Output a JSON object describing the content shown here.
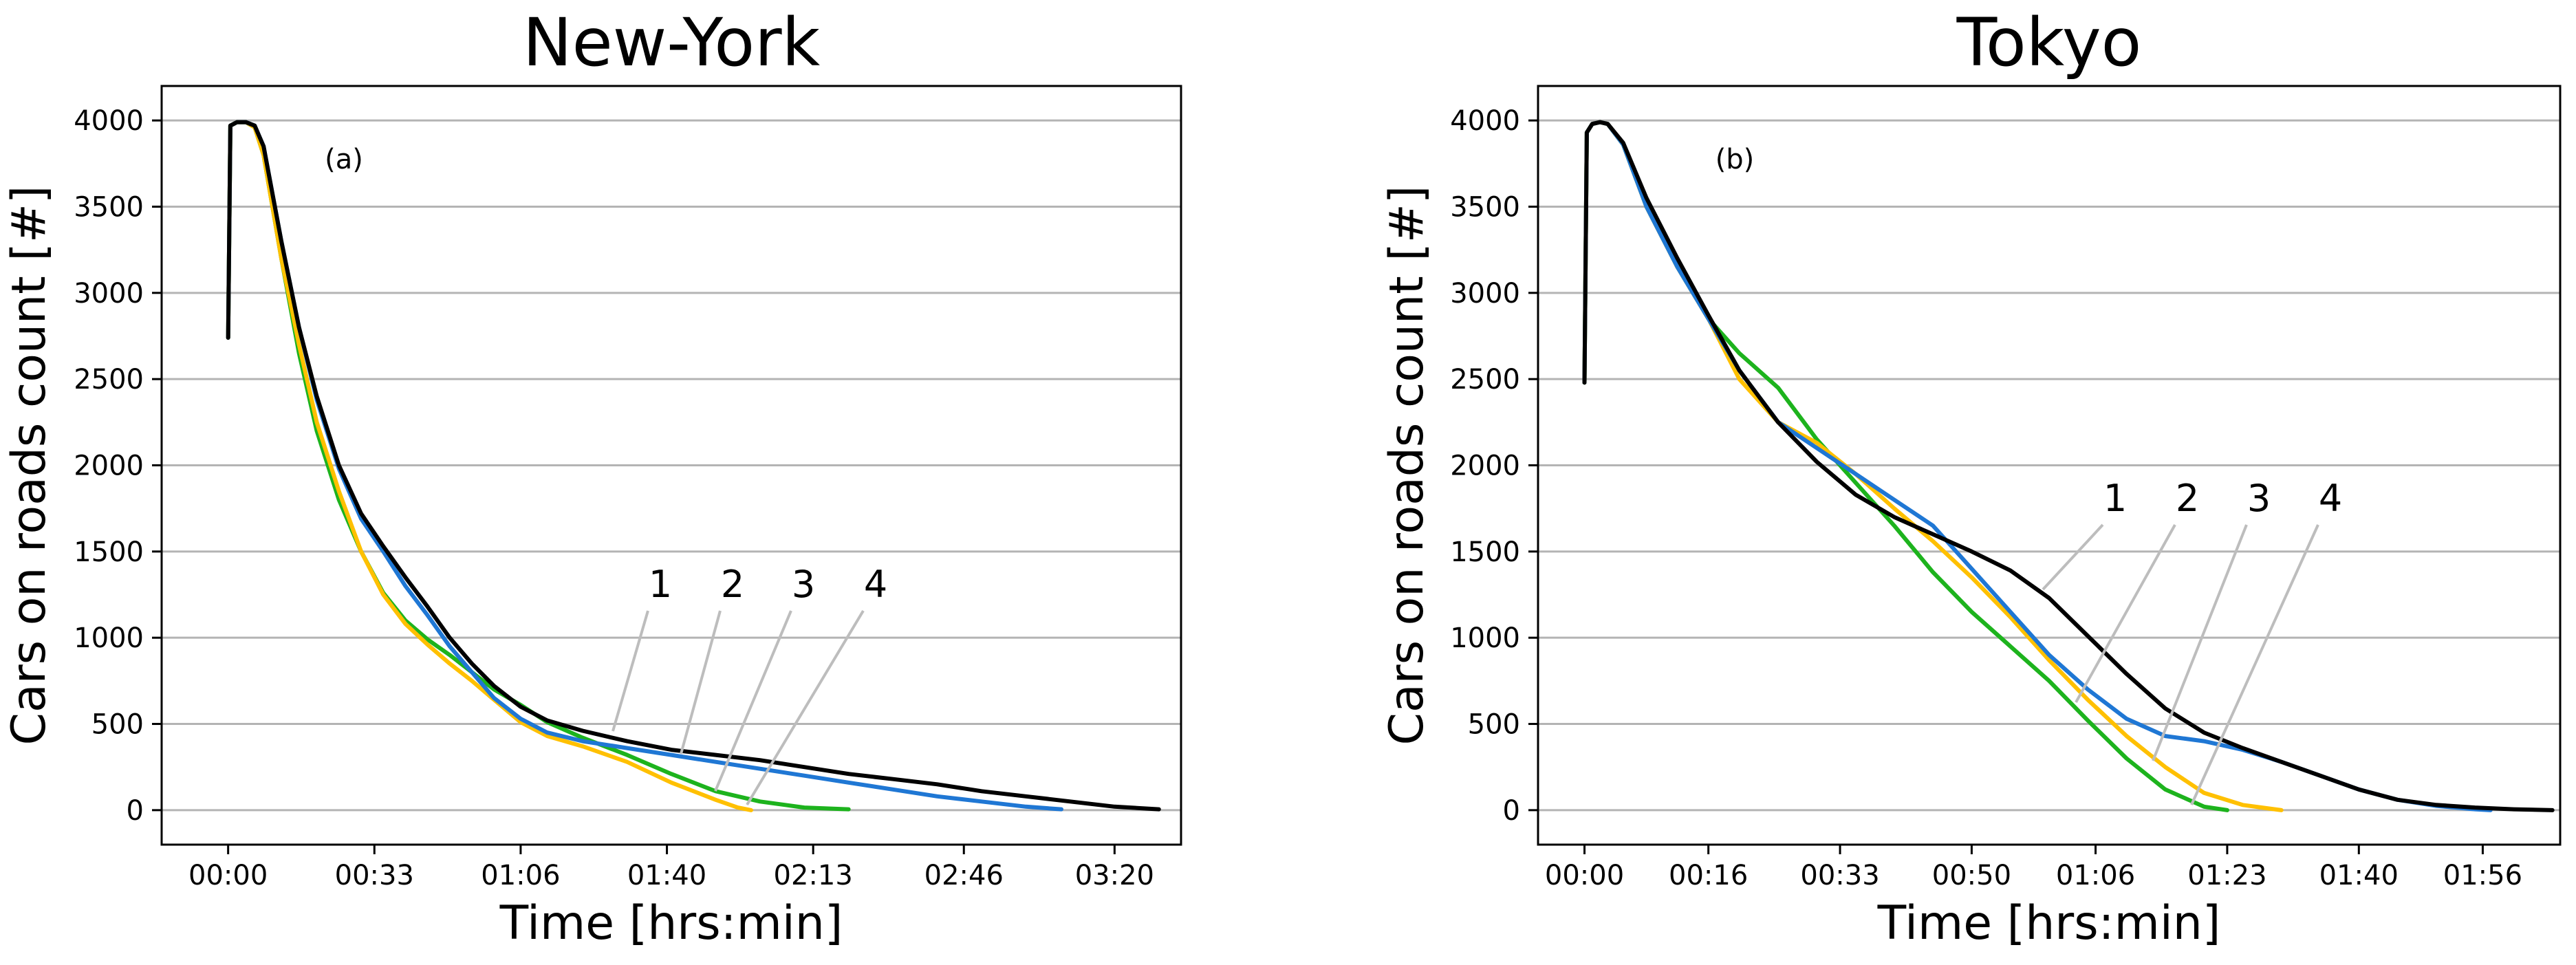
{
  "colors": {
    "series_1": "#000000",
    "series_2": "#1f77d4",
    "series_3": "#ffc000",
    "series_4": "#1db31d",
    "leader": "#bdbdbd",
    "grid": "#b4b4b4"
  },
  "chart_data": [
    {
      "type": "line",
      "title": "New-York",
      "panel_label": "(a)",
      "xlabel": "Time [hrs:min]",
      "ylabel": "Cars on roads count [#]",
      "x_unit": "minutes",
      "xlim": [
        -15,
        215
      ],
      "ylim": [
        -200,
        4200
      ],
      "x_ticks": [
        0,
        33,
        66,
        99,
        132,
        166,
        200
      ],
      "x_tick_labels": [
        "00:00",
        "00:33",
        "01:06",
        "01:40",
        "02:13",
        "02:46",
        "03:20"
      ],
      "y_ticks": [
        0,
        500,
        1000,
        1500,
        2000,
        2500,
        3000,
        3500,
        4000
      ],
      "y_tick_labels": [
        "0",
        "500",
        "1000",
        "1500",
        "2000",
        "2500",
        "3000",
        "3500",
        "4000"
      ],
      "grid": "horizontal",
      "callouts": [
        "1",
        "2",
        "3",
        "4"
      ],
      "series": [
        {
          "label": "1",
          "x": [
            0,
            0.5,
            2,
            4,
            6,
            8,
            12,
            16,
            20,
            25,
            30,
            35,
            40,
            45,
            50,
            55,
            60,
            66,
            72,
            80,
            90,
            100,
            110,
            120,
            130,
            140,
            150,
            160,
            170,
            180,
            190,
            200,
            210
          ],
          "y": [
            2740,
            3970,
            3990,
            3990,
            3970,
            3850,
            3300,
            2800,
            2400,
            2000,
            1720,
            1530,
            1350,
            1180,
            1000,
            850,
            720,
            600,
            520,
            460,
            400,
            350,
            320,
            290,
            250,
            210,
            180,
            150,
            110,
            80,
            50,
            20,
            5
          ]
        },
        {
          "label": "2",
          "x": [
            0,
            0.5,
            2,
            4,
            6,
            8,
            12,
            16,
            20,
            25,
            30,
            35,
            40,
            45,
            50,
            55,
            60,
            66,
            72,
            80,
            90,
            100,
            110,
            120,
            130,
            140,
            150,
            160,
            170,
            180,
            188
          ],
          "y": [
            2740,
            3970,
            3990,
            3990,
            3970,
            3850,
            3300,
            2800,
            2380,
            1980,
            1690,
            1500,
            1300,
            1130,
            950,
            800,
            650,
            530,
            450,
            400,
            360,
            320,
            280,
            240,
            200,
            160,
            120,
            80,
            50,
            20,
            5
          ]
        },
        {
          "label": "3",
          "x": [
            0,
            0.5,
            2,
            4,
            6,
            8,
            12,
            16,
            20,
            25,
            30,
            35,
            40,
            45,
            50,
            55,
            60,
            66,
            72,
            80,
            90,
            100,
            110,
            115,
            118
          ],
          "y": [
            2740,
            3970,
            3990,
            3990,
            3960,
            3800,
            3200,
            2700,
            2250,
            1850,
            1500,
            1250,
            1080,
            960,
            850,
            750,
            640,
            510,
            430,
            370,
            280,
            160,
            60,
            15,
            0
          ]
        },
        {
          "label": "4",
          "x": [
            0,
            0.5,
            2,
            4,
            6,
            8,
            12,
            16,
            20,
            25,
            30,
            35,
            40,
            45,
            50,
            55,
            60,
            66,
            72,
            80,
            90,
            100,
            110,
            120,
            130,
            140
          ],
          "y": [
            2740,
            3970,
            3990,
            3990,
            3960,
            3800,
            3200,
            2650,
            2200,
            1800,
            1500,
            1260,
            1100,
            990,
            900,
            800,
            700,
            610,
            510,
            420,
            320,
            210,
            110,
            50,
            15,
            5
          ]
        }
      ]
    },
    {
      "type": "line",
      "title": "Tokyo",
      "panel_label": "(b)",
      "xlabel": "Time [hrs:min]",
      "ylabel": "Cars on roads count [#]",
      "x_unit": "minutes",
      "xlim": [
        -6,
        126
      ],
      "ylim": [
        -200,
        4200
      ],
      "x_ticks": [
        0,
        16,
        33,
        50,
        66,
        83,
        100,
        116
      ],
      "x_tick_labels": [
        "00:00",
        "00:16",
        "00:33",
        "00:50",
        "01:06",
        "01:23",
        "01:40",
        "01:56"
      ],
      "y_ticks": [
        0,
        500,
        1000,
        1500,
        2000,
        2500,
        3000,
        3500,
        4000
      ],
      "y_tick_labels": [
        "0",
        "500",
        "1000",
        "1500",
        "2000",
        "2500",
        "3000",
        "3500",
        "4000"
      ],
      "grid": "horizontal",
      "callouts": [
        "1",
        "2",
        "3",
        "4"
      ],
      "series": [
        {
          "label": "1",
          "x": [
            0,
            0.3,
            1,
            2,
            3,
            5,
            8,
            12,
            16,
            20,
            25,
            30,
            35,
            40,
            45,
            50,
            55,
            60,
            65,
            70,
            75,
            80,
            85,
            90,
            95,
            100,
            105,
            110,
            115,
            120,
            125
          ],
          "y": [
            2480,
            3930,
            3980,
            3990,
            3980,
            3870,
            3550,
            3200,
            2870,
            2550,
            2250,
            2020,
            1830,
            1700,
            1600,
            1500,
            1390,
            1230,
            1010,
            790,
            590,
            450,
            360,
            280,
            200,
            120,
            60,
            30,
            15,
            5,
            0
          ]
        },
        {
          "label": "2",
          "x": [
            0,
            0.3,
            1,
            2,
            3,
            5,
            8,
            12,
            16,
            20,
            25,
            30,
            35,
            40,
            45,
            50,
            55,
            60,
            65,
            70,
            75,
            80,
            85,
            90,
            95,
            100,
            105,
            110,
            115,
            117
          ],
          "y": [
            2480,
            3930,
            3980,
            3990,
            3980,
            3860,
            3500,
            3150,
            2850,
            2550,
            2250,
            2100,
            1950,
            1800,
            1650,
            1400,
            1150,
            900,
            700,
            530,
            430,
            400,
            350,
            280,
            200,
            120,
            60,
            25,
            5,
            0
          ]
        },
        {
          "label": "3",
          "x": [
            0,
            0.3,
            1,
            2,
            3,
            5,
            8,
            12,
            16,
            20,
            25,
            30,
            35,
            40,
            45,
            50,
            55,
            60,
            65,
            70,
            75,
            80,
            85,
            90
          ],
          "y": [
            2480,
            3930,
            3980,
            3990,
            3980,
            3860,
            3500,
            3150,
            2850,
            2500,
            2250,
            2130,
            1950,
            1750,
            1560,
            1350,
            1120,
            870,
            640,
            430,
            250,
            100,
            30,
            0
          ]
        },
        {
          "label": "4",
          "x": [
            0,
            0.3,
            1,
            2,
            3,
            5,
            8,
            12,
            16,
            20,
            25,
            30,
            35,
            40,
            45,
            50,
            55,
            60,
            65,
            70,
            75,
            80,
            83
          ],
          "y": [
            2480,
            3930,
            3980,
            3990,
            3980,
            3860,
            3500,
            3150,
            2850,
            2650,
            2450,
            2150,
            1900,
            1650,
            1380,
            1150,
            950,
            750,
            520,
            300,
            120,
            20,
            0
          ]
        }
      ]
    }
  ]
}
